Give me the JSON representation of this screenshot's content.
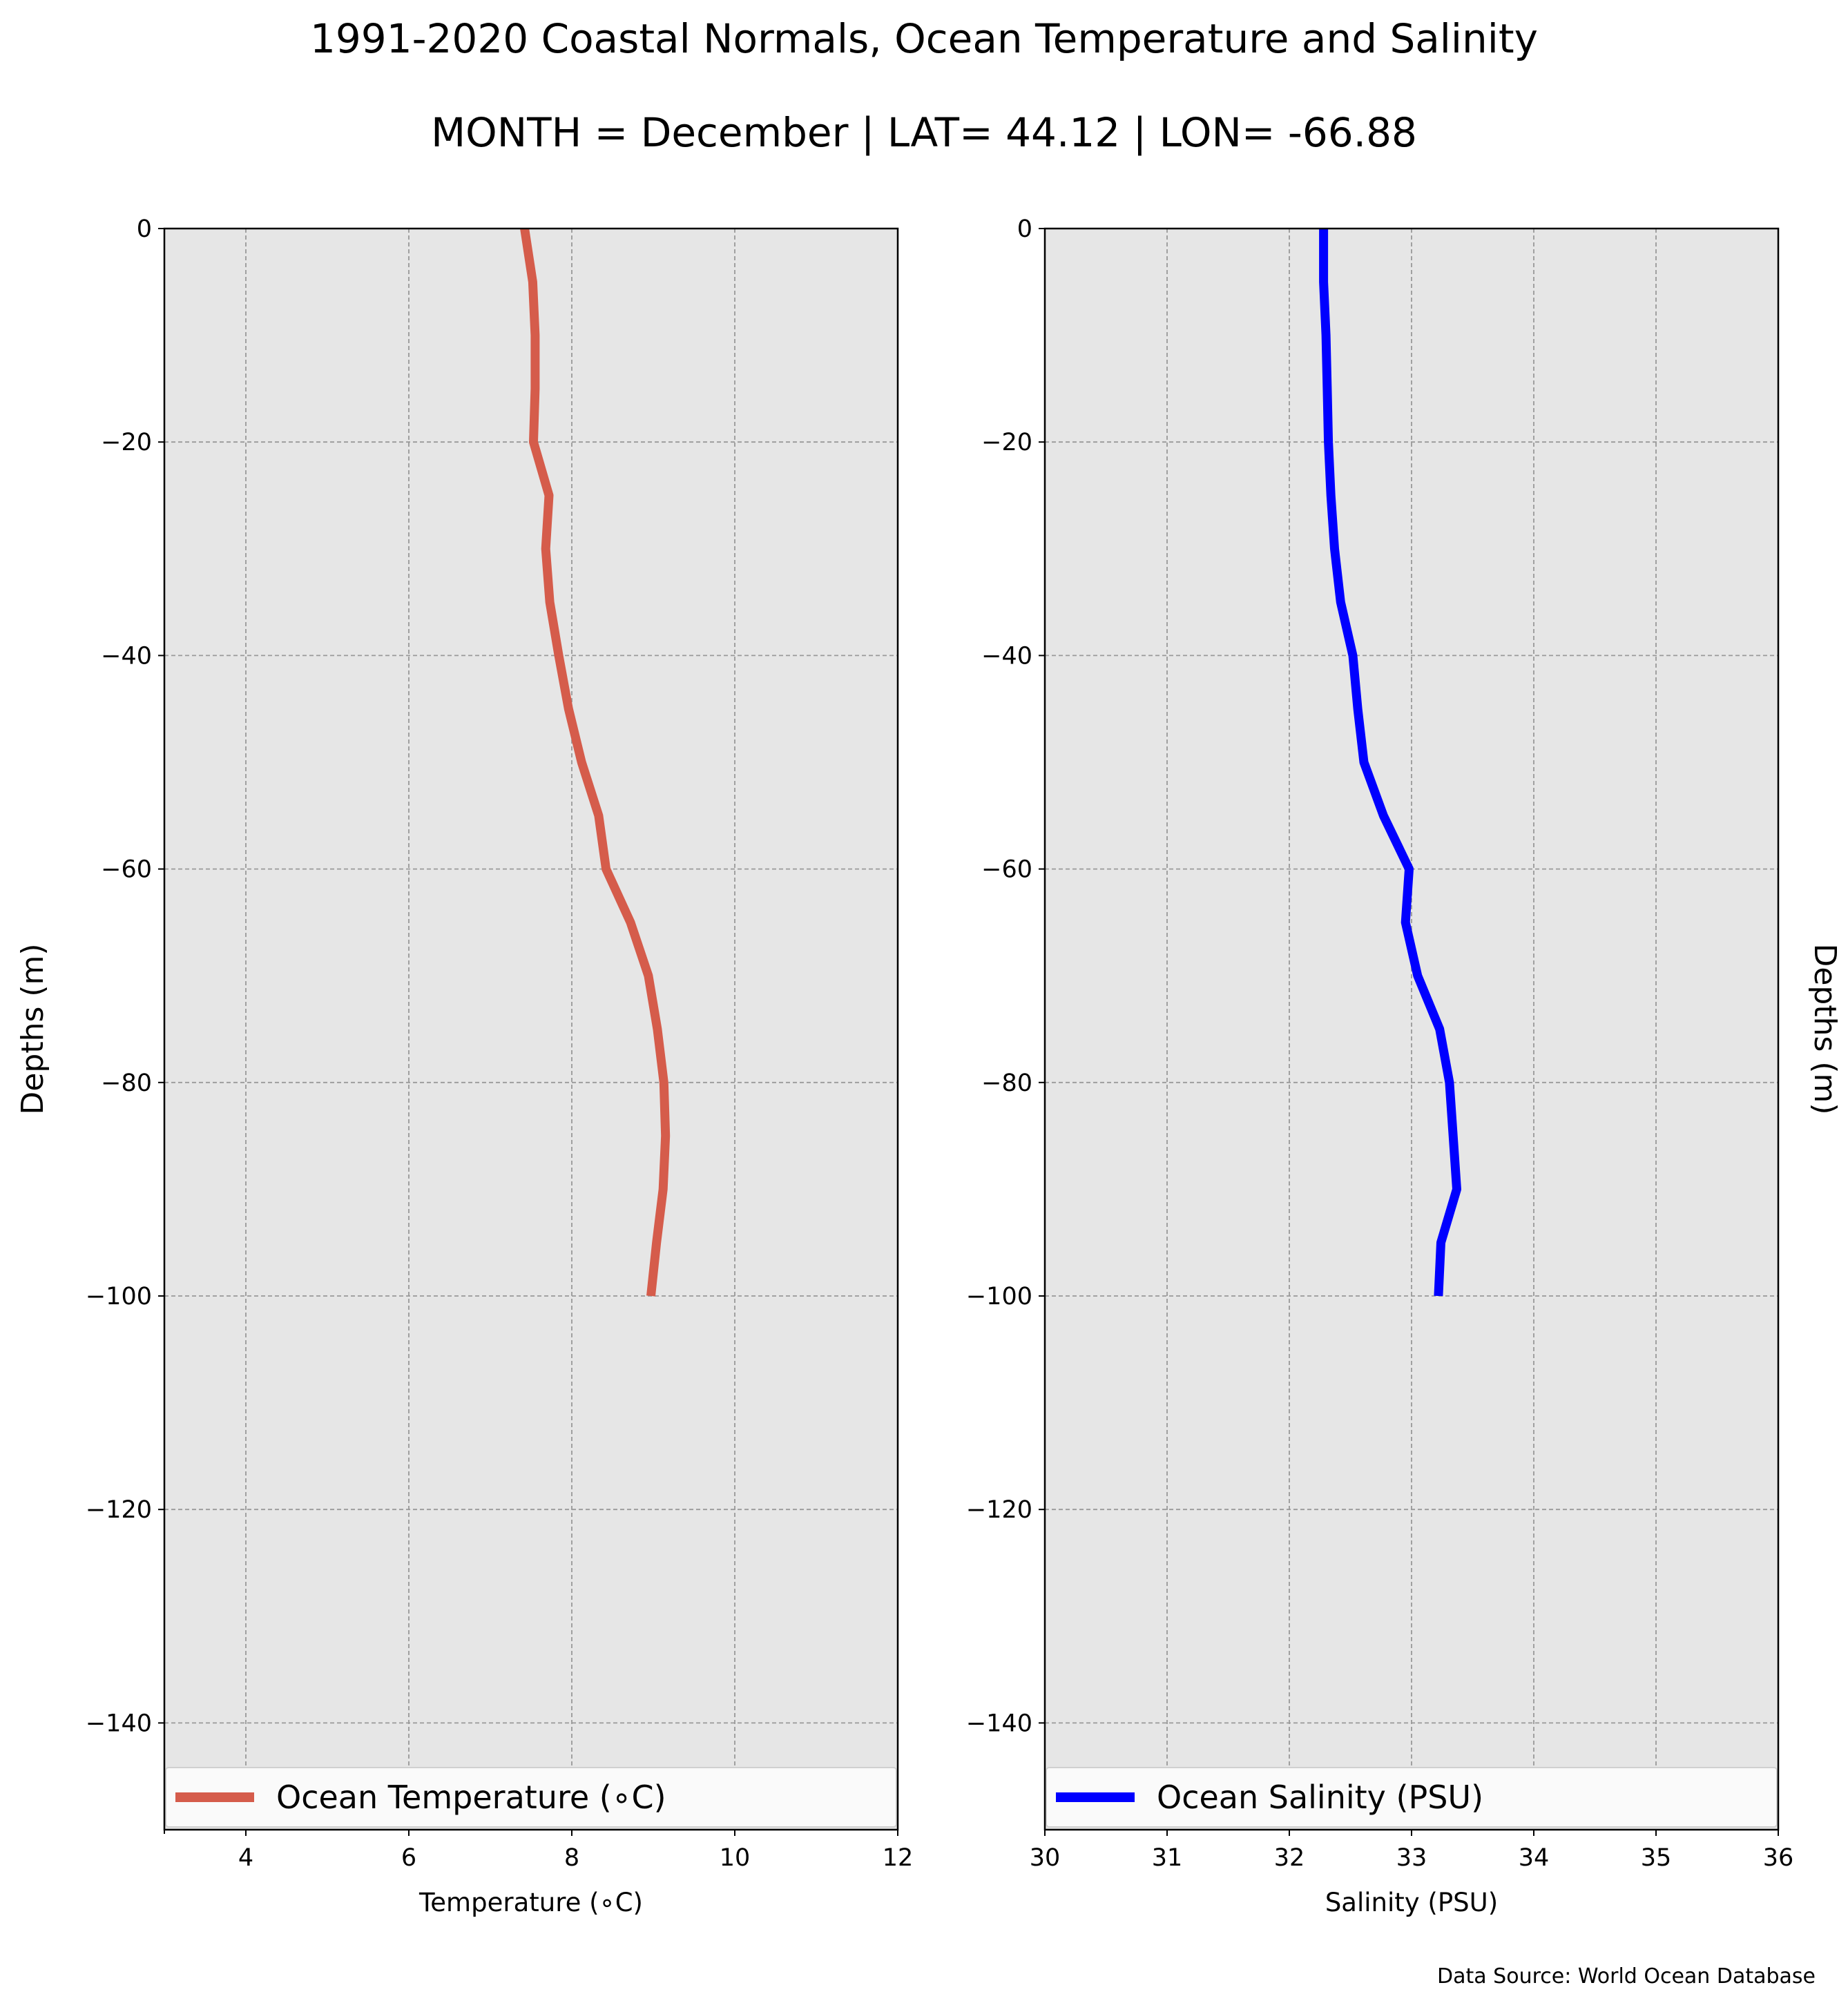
{
  "chart_data": {
    "title": "1991-2020 Coastal Normals, Ocean Temperature and Salinity",
    "subtitle": "MONTH = December | LAT= 44.12 | LON= -66.88",
    "source_note": "Data Source: World Ocean Database",
    "panels": [
      {
        "type": "line",
        "xlabel": "Temperature (∘C)",
        "ylabel": "Depths (m)",
        "ylabel_side": "left",
        "xlim": [
          3,
          12
        ],
        "ylim": [
          -150,
          0
        ],
        "xticks": [
          4,
          6,
          8,
          10,
          12
        ],
        "xtick_labels": [
          "4",
          "6",
          "8",
          "10",
          "12"
        ],
        "yticks": [
          0,
          -20,
          -40,
          -60,
          -80,
          -100,
          -120,
          -140
        ],
        "ytick_labels": [
          "0",
          "−20",
          "−40",
          "−60",
          "−80",
          "−100",
          "−120",
          "−140"
        ],
        "grid": true,
        "legend_placement": "bottom",
        "series": [
          {
            "name": "Ocean Temperature (∘C)",
            "color": "#d55c4b",
            "x": [
              7.42,
              7.52,
              7.55,
              7.55,
              7.53,
              7.72,
              7.68,
              7.73,
              7.84,
              7.96,
              8.12,
              8.33,
              8.42,
              8.72,
              8.94,
              9.05,
              9.13,
              9.15,
              9.12,
              9.04,
              8.97
            ],
            "y": [
              0,
              -5,
              -10,
              -15,
              -20,
              -25,
              -30,
              -35,
              -40,
              -45,
              -50,
              -55,
              -60,
              -65,
              -70,
              -75,
              -80,
              -85,
              -90,
              -95,
              -100
            ]
          }
        ]
      },
      {
        "type": "line",
        "xlabel": "Salinity (PSU)",
        "ylabel": "Depths (m)",
        "ylabel_side": "right",
        "xlim": [
          30,
          36
        ],
        "ylim": [
          -150,
          0
        ],
        "xticks": [
          30,
          31,
          32,
          33,
          34,
          35,
          36
        ],
        "xtick_labels": [
          "30",
          "31",
          "32",
          "33",
          "34",
          "35",
          "36"
        ],
        "yticks": [
          0,
          -20,
          -40,
          -60,
          -80,
          -100,
          -120,
          -140
        ],
        "ytick_labels": [
          "0",
          "−20",
          "−40",
          "−60",
          "−80",
          "−100",
          "−120",
          "−140"
        ],
        "grid": true,
        "legend_placement": "bottom",
        "series": [
          {
            "name": "Ocean Salinity (PSU)",
            "color": "#0000ff",
            "x": [
              32.28,
              32.28,
              32.3,
              32.31,
              32.32,
              32.34,
              32.37,
              32.42,
              32.52,
              32.56,
              32.61,
              32.77,
              32.98,
              32.95,
              33.05,
              33.23,
              33.31,
              33.34,
              33.37,
              33.24,
              33.22
            ],
            "y": [
              0,
              -5,
              -10,
              -15,
              -20,
              -25,
              -30,
              -35,
              -40,
              -45,
              -50,
              -55,
              -60,
              -65,
              -70,
              -75,
              -80,
              -85,
              -90,
              -95,
              -100
            ]
          }
        ]
      }
    ]
  }
}
